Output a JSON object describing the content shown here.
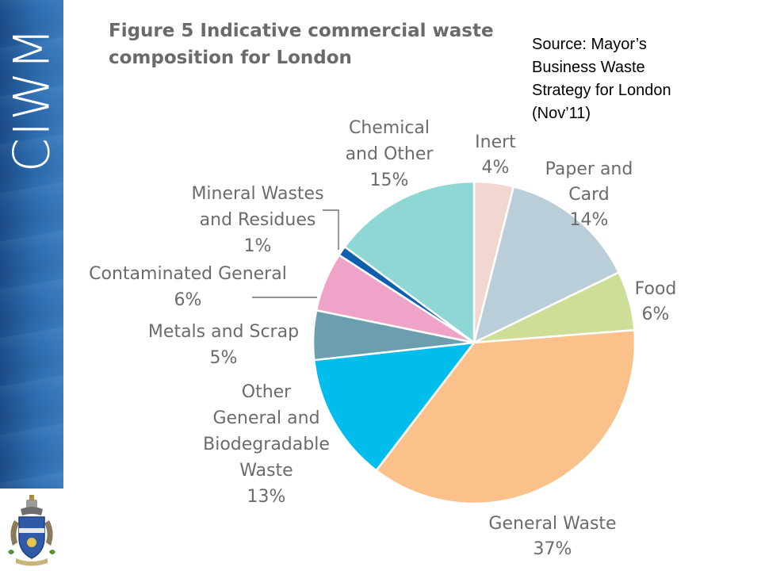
{
  "brand": {
    "name": "CIWM"
  },
  "title": {
    "line1": "Figure 5 Indicative commercial waste",
    "line2": "composition for London"
  },
  "source": {
    "line1": "Source: Mayor’s",
    "line2": "Business Waste",
    "line3": "Strategy for London",
    "line4": "(Nov’11)"
  },
  "chart_data": {
    "type": "pie",
    "title": "Figure 5 Indicative commercial waste composition for London",
    "unit": "%",
    "start": "12 o'clock",
    "direction": "clockwise",
    "slices": [
      {
        "key": "inert",
        "label": [
          "Inert",
          "4%"
        ],
        "value": 4,
        "color": "#f2d6d0"
      },
      {
        "key": "paper",
        "label": [
          "Paper and",
          "Card",
          "14%"
        ],
        "value": 14,
        "color": "#b9ced9"
      },
      {
        "key": "food",
        "label": [
          "Food",
          "6%"
        ],
        "value": 6,
        "color": "#cddf97"
      },
      {
        "key": "general",
        "label": [
          "General Waste",
          "37%"
        ],
        "value": 37,
        "color": "#fbc18b"
      },
      {
        "key": "other_general",
        "label": [
          "Other",
          "General and",
          "Biodegradable",
          "Waste",
          "13%"
        ],
        "value": 13,
        "color": "#00bdeb"
      },
      {
        "key": "metals",
        "label": [
          "Metals and Scrap",
          "5%"
        ],
        "value": 5,
        "color": "#6c9fae"
      },
      {
        "key": "contaminated",
        "label": [
          "Contaminated General",
          "6%"
        ],
        "value": 6,
        "color": "#f0a3c8"
      },
      {
        "key": "mineral",
        "label": [
          "Mineral Wastes",
          "and Residues",
          "1%"
        ],
        "value": 1,
        "color": "#0f5fae"
      },
      {
        "key": "chemical",
        "label": [
          "Chemical",
          "and Other",
          "15%"
        ],
        "value": 15,
        "color": "#8fd7d4"
      }
    ]
  }
}
